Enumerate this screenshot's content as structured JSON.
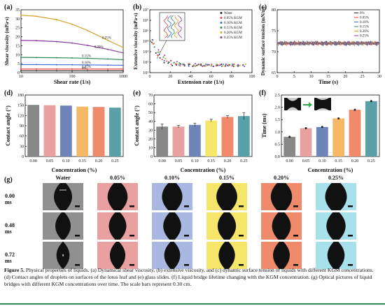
{
  "panels": {
    "a": {
      "label": "(a)"
    },
    "b": {
      "label": "(b)"
    },
    "c": {
      "label": "(c)"
    },
    "d": {
      "label": "(d)"
    },
    "e": {
      "label": "(e)"
    },
    "f": {
      "label": "(f)"
    },
    "g": {
      "label": "(g)"
    }
  },
  "colors": {
    "water": "#909090",
    "c005": "#e8a0a0",
    "c010": "#a8b8e0",
    "c015": "#f5e66a",
    "c020": "#ef8a6a",
    "c025": "#a8e0ec",
    "bar_d": [
      "#888888",
      "#e8a0a0",
      "#6f84b8",
      "#f5b866",
      "#ef8a6a",
      "#5aa0a8"
    ],
    "bar_e": [
      "#888888",
      "#e8a0a0",
      "#6f84b8",
      "#f5e66a",
      "#ef8a6a",
      "#5aa0a8"
    ],
    "bar_f": [
      "#888888",
      "#e8a0a0",
      "#6f84b8",
      "#f5b866",
      "#ef8a6a",
      "#5aa0a8"
    ]
  },
  "chart_data": [
    {
      "id": "a",
      "type": "line",
      "xlabel": "Shear rate (1/s)",
      "ylabel": "Shear viscosity (mPa·s)",
      "xscale": "log",
      "xlim": [
        10,
        1000
      ],
      "ylim": [
        0,
        35
      ],
      "x_ticks": [
        "10",
        "100",
        "1000"
      ],
      "y_ticks": [
        "0",
        "5",
        "10",
        "15",
        "20",
        "25",
        "30",
        "35"
      ],
      "x": [
        10,
        20,
        50,
        100,
        200,
        500,
        1000
      ],
      "series": [
        {
          "name": "0.25%",
          "label": "0.25%",
          "color": "#d4a52c",
          "values": [
            32,
            31.4,
            29.5,
            27,
            23.5,
            18,
            14
          ]
        },
        {
          "name": "0.20%",
          "label": "0.20%",
          "color": "#8a3a9a",
          "values": [
            18,
            17.8,
            17.3,
            16.5,
            15.2,
            13,
            11
          ]
        },
        {
          "name": "0.15%",
          "label": "0.15%",
          "color": "#2e8b57",
          "values": [
            8.5,
            8.4,
            8.3,
            8.2,
            8,
            7.6,
            7.2
          ]
        },
        {
          "name": "0.10%",
          "label": "0.10%",
          "color": "#3a6ad0",
          "values": [
            4.5,
            4.5,
            4.4,
            4.4,
            4.3,
            4.2,
            4.1
          ]
        },
        {
          "name": "0.05%",
          "label": "0.05%",
          "color": "#e84040",
          "values": [
            2,
            2,
            2,
            2,
            2,
            2,
            2
          ]
        },
        {
          "name": "0%",
          "label": "0%",
          "color": "#222222",
          "values": [
            1,
            1,
            1,
            1,
            1,
            1,
            1
          ]
        }
      ]
    },
    {
      "id": "b",
      "type": "scatter",
      "xlabel": "Extension rate (1/s)",
      "ylabel": "Extensive viscosity (mPa·s)",
      "yscale": "log",
      "xlim": [
        0,
        100
      ],
      "x_ticks": [
        "0",
        "20",
        "40",
        "60",
        "80",
        "100"
      ],
      "y_ticks": [
        "10¹",
        "10²",
        "10³",
        "10⁴",
        "10⁵",
        "10⁶",
        "10⁷"
      ],
      "legend": [
        "Water",
        "0.05% KGM",
        "0.10% KGM",
        "0.15% KGM",
        "0.20% KGM",
        "0.25% KGM"
      ],
      "legend_colors": [
        "#222222",
        "#e84040",
        "#3a6ad0",
        "#2e8b57",
        "#d4a52c",
        "#8a3a9a"
      ]
    },
    {
      "id": "c",
      "type": "line",
      "xlabel": "Time (s)",
      "ylabel": "Dynamic surface tension (mN/m)",
      "xlim": [
        0,
        30
      ],
      "ylim": [
        65,
        80
      ],
      "x_ticks": [
        "0",
        "5",
        "10",
        "15",
        "20",
        "25",
        "30"
      ],
      "y_ticks": [
        "65",
        "70",
        "75",
        "80"
      ],
      "legend": [
        "0%",
        "0.05%",
        "0.10%",
        "0.15%",
        "0.20%",
        "0.25%"
      ],
      "legend_colors": [
        "#222222",
        "#e84040",
        "#3a6ad0",
        "#2e8b57",
        "#d4a52c",
        "#8a3a9a"
      ],
      "level": 72
    },
    {
      "id": "d",
      "type": "bar",
      "xlabel": "Concentration (%)",
      "ylabel": "Contact angle (°)",
      "categories": [
        "0.00",
        "0.05",
        "0.10",
        "0.15",
        "0.20",
        "0.25"
      ],
      "values": [
        151,
        150,
        149,
        146,
        145,
        143
      ],
      "ylim": [
        0,
        180
      ],
      "y_ticks": [
        "0",
        "30",
        "60",
        "90",
        "120",
        "150",
        "180"
      ]
    },
    {
      "id": "e",
      "type": "bar",
      "xlabel": "Concentration (%)",
      "ylabel": "Contact angle (°)",
      "categories": [
        "0.00",
        "0.05",
        "0.10",
        "0.15",
        "0.20",
        "0.25"
      ],
      "values": [
        34,
        34,
        36,
        41,
        45,
        46
      ],
      "errors": [
        3,
        1.5,
        2,
        1.5,
        1.5,
        4
      ],
      "ylim": [
        0,
        70
      ],
      "y_ticks": [
        "0",
        "10",
        "20",
        "30",
        "40",
        "50",
        "60",
        "70"
      ]
    },
    {
      "id": "f",
      "type": "bar",
      "xlabel": "Concentration (%)",
      "ylabel": "Time (ms)",
      "categories": [
        "0.00",
        "0.05",
        "0.10",
        "0.15",
        "0.20",
        "0.25"
      ],
      "values": [
        0.8,
        1.15,
        1.2,
        1.55,
        1.9,
        2.25
      ],
      "ylim": [
        0,
        2.5
      ],
      "y_ticks": [
        "0.0",
        "0.5",
        "1.0",
        "1.5",
        "2.0",
        "2.5"
      ]
    }
  ],
  "grid_g": {
    "columns": [
      "Water",
      "0.05%",
      "0.10%",
      "0.15%",
      "0.20%",
      "0.25%"
    ],
    "rows": [
      "0.00 ms",
      "0.48 ms",
      "0.72 ms"
    ]
  },
  "caption": {
    "label": "Figure 5.",
    "text": " Physical properties of liquids. (a) Dynamical shear viscosity, (b) extensive viscosity, and (c) dynamic surface tension of liquids with different KGM concentrations. (d) Contact angles of droplets on surfaces of the lotus leaf and (e) glass slides. (f) Liquid bridge lifetime changing with the KGM concentration. (g) Optical pictures of liquid bridges with different KGM concentrations over time. The scale bars represent 0.30 cm."
  }
}
